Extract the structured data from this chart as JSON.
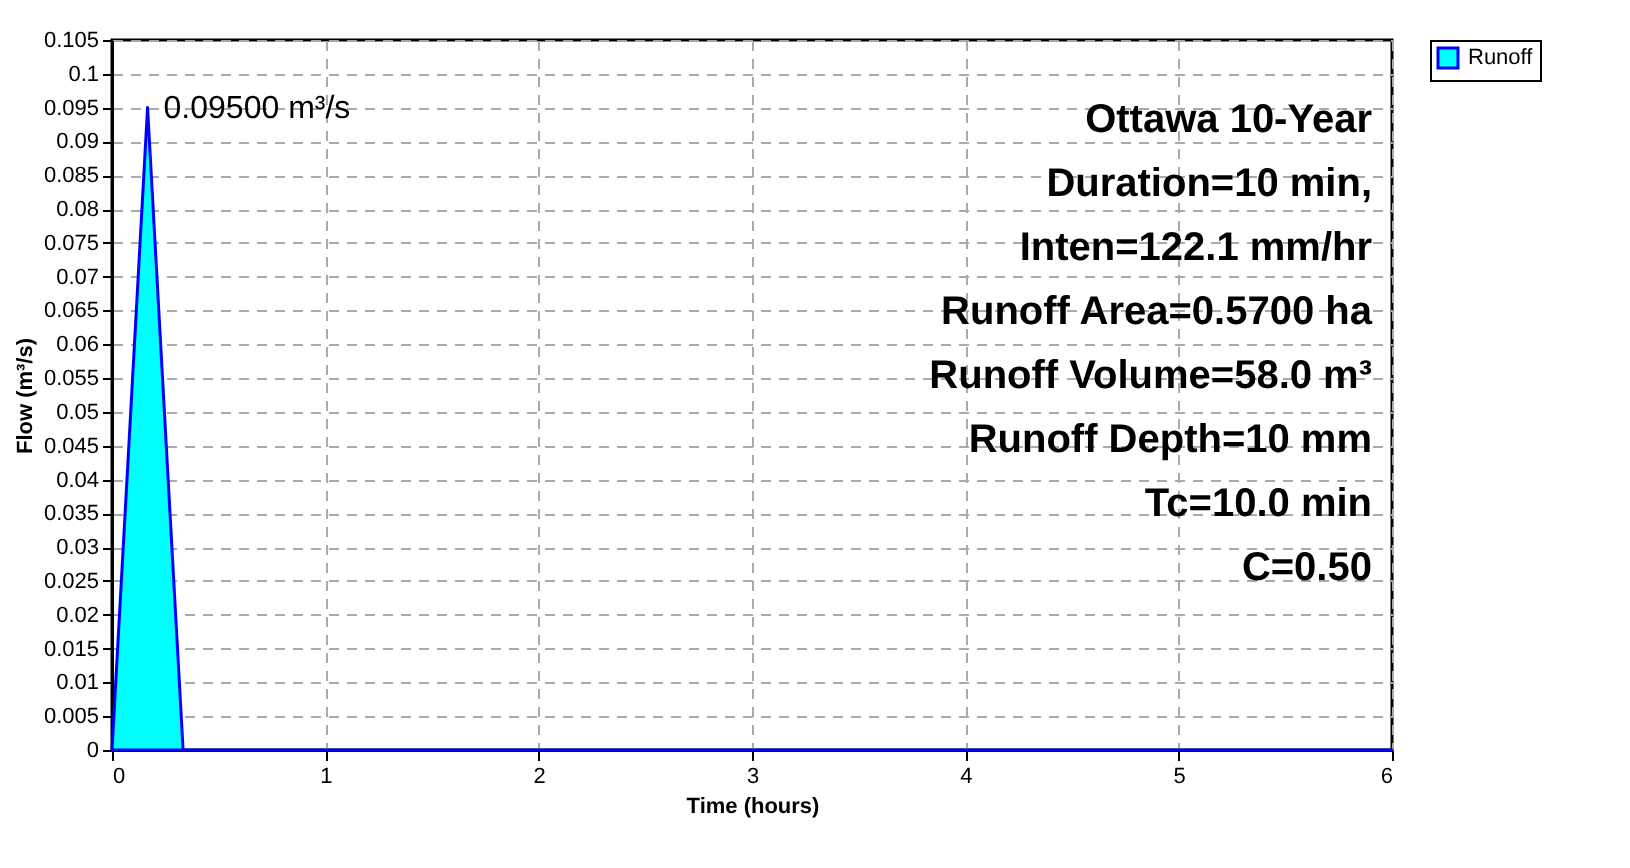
{
  "chart_data": {
    "type": "area",
    "xlabel": "Time  (hours)",
    "ylabel": "Flow  (m³/s)",
    "x": [
      0,
      0.1667,
      0.3333,
      6
    ],
    "series": [
      {
        "name": "Runoff",
        "color": "#00ffff",
        "values": [
          0,
          0.095,
          0,
          0
        ]
      }
    ],
    "xlim": [
      0,
      6
    ],
    "xticks": [
      0,
      1,
      2,
      3,
      4,
      5,
      6
    ],
    "ylim": [
      0,
      0.105
    ],
    "yticks": [
      0,
      0.005,
      0.01,
      0.015,
      0.02,
      0.025,
      0.03,
      0.035,
      0.04,
      0.045,
      0.05,
      0.055,
      0.06,
      0.065,
      0.07,
      0.075,
      0.08,
      0.085,
      0.09,
      0.095,
      0.1,
      0.105
    ],
    "grid": true,
    "legend": "top right",
    "annotations": [
      {
        "text": "0.09500 m³/s",
        "x": 0.1667,
        "y": 0.095
      },
      "Ottawa 10-Year",
      "Duration=10 min,",
      "Inten=122.1 mm/hr",
      "Runoff Area=0.5700 ha",
      "Runoff Volume=58.0 m³",
      "Runoff Depth=10 mm",
      "Tc=10.0 min",
      "C=0.50"
    ]
  }
}
